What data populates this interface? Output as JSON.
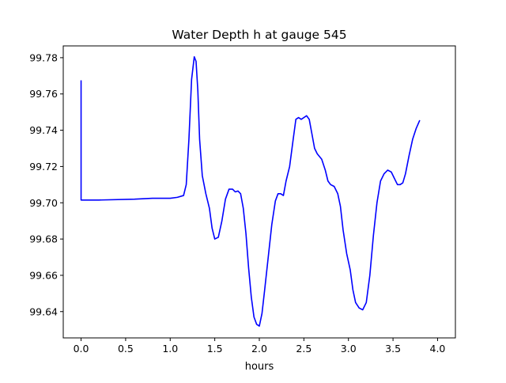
{
  "chart_data": {
    "type": "line",
    "title": "Water Depth h at gauge 545",
    "xlabel": "hours",
    "ylabel": "",
    "xlim": [
      -0.2,
      4.2
    ],
    "ylim": [
      99.6255,
      99.7865
    ],
    "xticks": [
      {
        "value": 0.0,
        "label": "0.0"
      },
      {
        "value": 0.5,
        "label": "0.5"
      },
      {
        "value": 1.0,
        "label": "1.0"
      },
      {
        "value": 1.5,
        "label": "1.5"
      },
      {
        "value": 2.0,
        "label": "2.0"
      },
      {
        "value": 2.5,
        "label": "2.5"
      },
      {
        "value": 3.0,
        "label": "3.0"
      },
      {
        "value": 3.5,
        "label": "3.5"
      },
      {
        "value": 4.0,
        "label": "4.0"
      }
    ],
    "yticks": [
      {
        "value": 99.64,
        "label": "99.64"
      },
      {
        "value": 99.66,
        "label": "99.66"
      },
      {
        "value": 99.68,
        "label": "99.68"
      },
      {
        "value": 99.7,
        "label": "99.70"
      },
      {
        "value": 99.72,
        "label": "99.72"
      },
      {
        "value": 99.74,
        "label": "99.74"
      },
      {
        "value": 99.76,
        "label": "99.76"
      },
      {
        "value": 99.78,
        "label": "99.78"
      }
    ],
    "grid": false,
    "legend": "none",
    "series": [
      {
        "color": "#0000ff",
        "points": [
          [
            0.0,
            99.7675
          ],
          [
            0.0,
            99.7015
          ],
          [
            0.2,
            99.7015
          ],
          [
            0.6,
            99.702
          ],
          [
            0.8,
            99.7025
          ],
          [
            1.0,
            99.7025
          ],
          [
            1.08,
            99.703
          ],
          [
            1.15,
            99.704
          ],
          [
            1.18,
            99.71
          ],
          [
            1.21,
            99.735
          ],
          [
            1.24,
            99.768
          ],
          [
            1.27,
            99.7805
          ],
          [
            1.29,
            99.778
          ],
          [
            1.31,
            99.762
          ],
          [
            1.33,
            99.735
          ],
          [
            1.36,
            99.715
          ],
          [
            1.4,
            99.705
          ],
          [
            1.44,
            99.697
          ],
          [
            1.47,
            99.686
          ],
          [
            1.5,
            99.68
          ],
          [
            1.54,
            99.681
          ],
          [
            1.58,
            99.69
          ],
          [
            1.62,
            99.702
          ],
          [
            1.66,
            99.7075
          ],
          [
            1.7,
            99.7075
          ],
          [
            1.73,
            99.706
          ],
          [
            1.76,
            99.7065
          ],
          [
            1.79,
            99.705
          ],
          [
            1.82,
            99.697
          ],
          [
            1.85,
            99.683
          ],
          [
            1.88,
            99.664
          ],
          [
            1.91,
            99.648
          ],
          [
            1.94,
            99.637
          ],
          [
            1.97,
            99.633
          ],
          [
            2.0,
            99.632
          ],
          [
            2.03,
            99.639
          ],
          [
            2.06,
            99.652
          ],
          [
            2.1,
            99.67
          ],
          [
            2.14,
            99.688
          ],
          [
            2.18,
            99.701
          ],
          [
            2.21,
            99.705
          ],
          [
            2.24,
            99.705
          ],
          [
            2.27,
            99.704
          ],
          [
            2.3,
            99.712
          ],
          [
            2.34,
            99.72
          ],
          [
            2.38,
            99.735
          ],
          [
            2.41,
            99.746
          ],
          [
            2.44,
            99.747
          ],
          [
            2.47,
            99.746
          ],
          [
            2.5,
            99.747
          ],
          [
            2.53,
            99.748
          ],
          [
            2.56,
            99.746
          ],
          [
            2.59,
            99.738
          ],
          [
            2.62,
            99.73
          ],
          [
            2.65,
            99.727
          ],
          [
            2.7,
            99.724
          ],
          [
            2.74,
            99.718
          ],
          [
            2.77,
            99.712
          ],
          [
            2.8,
            99.71
          ],
          [
            2.84,
            99.709
          ],
          [
            2.88,
            99.705
          ],
          [
            2.91,
            99.698
          ],
          [
            2.94,
            99.685
          ],
          [
            2.98,
            99.672
          ],
          [
            3.02,
            99.663
          ],
          [
            3.05,
            99.652
          ],
          [
            3.08,
            99.645
          ],
          [
            3.12,
            99.642
          ],
          [
            3.16,
            99.641
          ],
          [
            3.2,
            99.645
          ],
          [
            3.24,
            99.66
          ],
          [
            3.28,
            99.682
          ],
          [
            3.32,
            99.7
          ],
          [
            3.36,
            99.712
          ],
          [
            3.4,
            99.716
          ],
          [
            3.44,
            99.718
          ],
          [
            3.48,
            99.717
          ],
          [
            3.52,
            99.713
          ],
          [
            3.55,
            99.71
          ],
          [
            3.58,
            99.71
          ],
          [
            3.61,
            99.711
          ],
          [
            3.64,
            99.716
          ],
          [
            3.68,
            99.726
          ],
          [
            3.72,
            99.735
          ],
          [
            3.76,
            99.741
          ],
          [
            3.8,
            99.7455
          ]
        ]
      }
    ]
  }
}
